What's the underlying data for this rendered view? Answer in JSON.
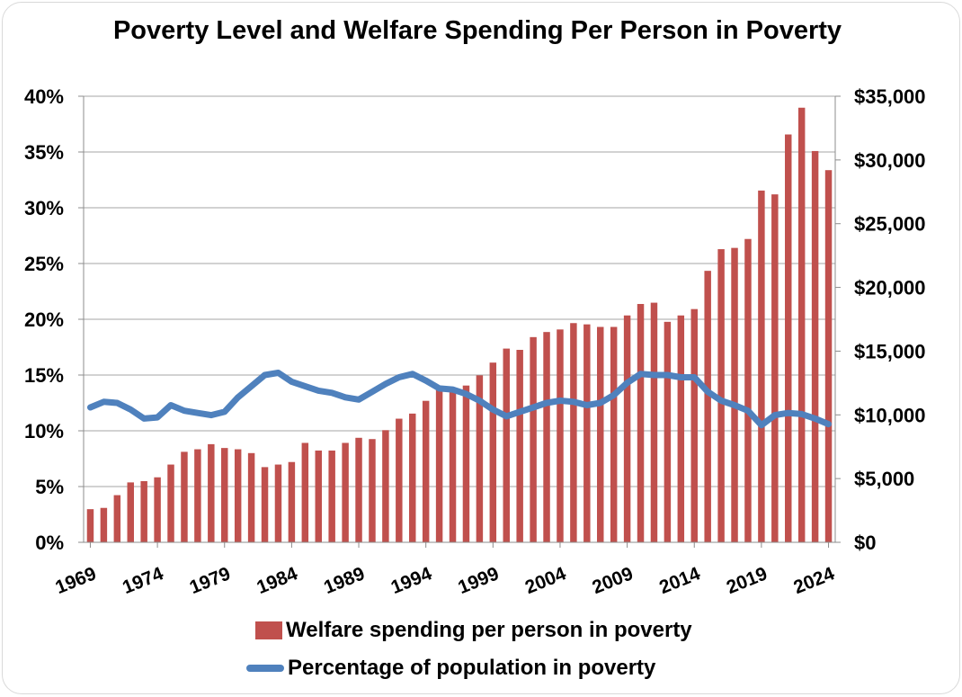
{
  "colors": {
    "bar": "#c0504d",
    "line": "#4f81bd",
    "grid": "#a6a6a6",
    "axis": "#8c8c8c"
  },
  "chart_data": {
    "type": "bar+line",
    "title": "Poverty Level and Welfare Spending Per Person in Poverty",
    "x_tick_labels": [
      "1969",
      "1974",
      "1979",
      "1984",
      "1989",
      "1994",
      "1999",
      "2004",
      "2009",
      "2014",
      "2019",
      "2024"
    ],
    "years": [
      1969,
      1970,
      1971,
      1972,
      1973,
      1974,
      1975,
      1976,
      1977,
      1978,
      1979,
      1980,
      1981,
      1982,
      1983,
      1984,
      1985,
      1986,
      1987,
      1988,
      1989,
      1990,
      1991,
      1992,
      1993,
      1994,
      1995,
      1996,
      1997,
      1998,
      1999,
      2000,
      2001,
      2002,
      2003,
      2004,
      2005,
      2006,
      2007,
      2008,
      2009,
      2010,
      2011,
      2012,
      2013,
      2014,
      2015,
      2016,
      2017,
      2018,
      2019,
      2020,
      2021,
      2022,
      2023,
      2024
    ],
    "left_axis": {
      "ticks": [
        "0%",
        "5%",
        "10%",
        "15%",
        "20%",
        "25%",
        "30%",
        "35%",
        "40%"
      ],
      "range": [
        0,
        40
      ]
    },
    "right_axis": {
      "ticks": [
        "$0",
        "$5,000",
        "$10,000",
        "$15,000",
        "$20,000",
        "$25,000",
        "$30,000",
        "$35,000"
      ],
      "range": [
        0,
        35000
      ]
    },
    "gridlines": true,
    "legend_position": "bottom",
    "series": [
      {
        "name": "Welfare spending per person in poverty",
        "type": "bar",
        "axis": "right",
        "values": [
          2600,
          2700,
          3700,
          4700,
          4800,
          5100,
          6100,
          7100,
          7300,
          7700,
          7400,
          7300,
          7000,
          5900,
          6100,
          6300,
          7800,
          7200,
          7200,
          7800,
          8200,
          8100,
          8800,
          9700,
          10100,
          11100,
          12200,
          12100,
          12300,
          13100,
          14100,
          15200,
          15100,
          16100,
          16500,
          16700,
          17200,
          17100,
          16900,
          16900,
          17800,
          18700,
          18800,
          17300,
          17800,
          18300,
          21300,
          23000,
          23100,
          23800,
          27600,
          27300,
          32000,
          34100,
          30700,
          29200
        ]
      },
      {
        "name": "Percentage of population in poverty",
        "type": "line",
        "axis": "left",
        "values": [
          12.1,
          12.6,
          12.5,
          11.9,
          11.1,
          11.2,
          12.3,
          11.8,
          11.6,
          11.4,
          11.7,
          13.0,
          14.0,
          15.0,
          15.2,
          14.4,
          14.0,
          13.6,
          13.4,
          13.0,
          12.8,
          13.5,
          14.2,
          14.8,
          15.1,
          14.5,
          13.8,
          13.7,
          13.3,
          12.7,
          11.9,
          11.3,
          11.7,
          12.1,
          12.5,
          12.7,
          12.6,
          12.3,
          12.5,
          13.2,
          14.3,
          15.1,
          15.0,
          15.0,
          14.8,
          14.8,
          13.5,
          12.7,
          12.3,
          11.8,
          10.5,
          11.4,
          11.6,
          11.5,
          11.1,
          10.6
        ]
      }
    ]
  }
}
